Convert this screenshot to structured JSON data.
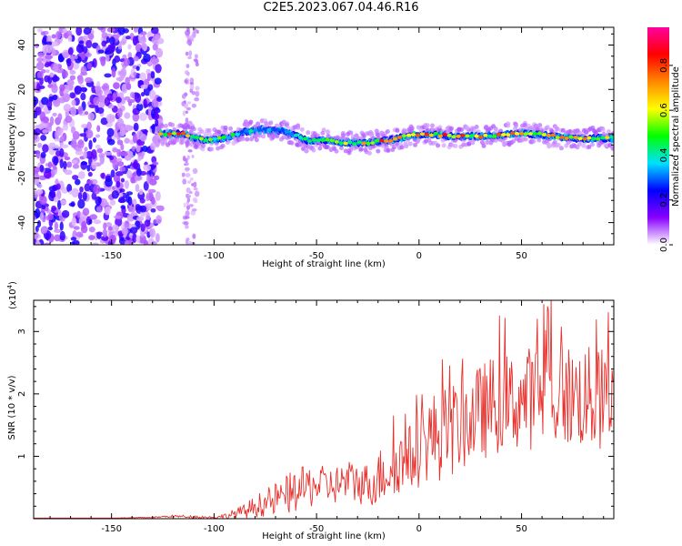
{
  "title": "C2E5.2023.067.04.46.R16",
  "chart_data": [
    {
      "type": "heatmap",
      "name": "spectrogram",
      "xlabel": "Height of straight line (km)",
      "ylabel": "Frequency (Hz)",
      "xlim": [
        -188,
        95
      ],
      "ylim": [
        -50,
        48
      ],
      "xticks": [
        -150,
        -100,
        -50,
        0,
        50
      ],
      "yticks": [
        -40,
        -20,
        0,
        20,
        40
      ],
      "grid": false,
      "colorbar": {
        "label": "Normalized spectral amplitude",
        "range": [
          0,
          1
        ],
        "ticks": [
          "0.0",
          "0.2",
          "0.4",
          "0.6",
          "0.8"
        ],
        "colors": [
          "#ffffff",
          "#8800ff",
          "#0000ff",
          "#00e0ff",
          "#00ff00",
          "#ffff00",
          "#ff8800",
          "#ff0000",
          "#ff00a0"
        ]
      },
      "noise_region_x": [
        -188,
        -126
      ],
      "sparse_noise_band_x": [
        -115,
        -108
      ],
      "signal_trace": {
        "x": [
          -126,
          -115,
          -105,
          -95,
          -85,
          -75,
          -65,
          -55,
          -45,
          -35,
          -25,
          -15,
          -5,
          5,
          15,
          25,
          35,
          45,
          55,
          65,
          75,
          85,
          95
        ],
        "freq_hz": [
          0,
          0,
          -3,
          -2,
          1,
          2,
          1,
          -3,
          -3,
          -4,
          -4,
          -3,
          -1,
          0,
          -1,
          -1,
          -1,
          0,
          0,
          -1,
          -2,
          -2,
          -2
        ],
        "peak_amplitude": [
          0.8,
          0.9,
          0.6,
          0.6,
          0.5,
          0.45,
          0.5,
          0.6,
          0.6,
          0.65,
          0.85,
          0.9,
          0.8,
          0.85,
          0.9,
          0.85,
          0.8,
          0.85,
          0.8,
          0.85,
          0.8,
          0.75,
          0.7
        ]
      }
    },
    {
      "type": "line",
      "name": "snr",
      "xlabel": "Height of straight line (km)",
      "ylabel": "SNR (10 * v/v)",
      "y_multiplier": "(x10",
      "y_multiplier_exp": "4",
      "y_multiplier_close": ")",
      "xlim": [
        -188,
        95
      ],
      "ylim": [
        0,
        3.5
      ],
      "xticks": [
        -150,
        -100,
        -50,
        0,
        50
      ],
      "yticks": [
        1,
        2,
        3
      ],
      "grid": false,
      "line_color": "#e8302c",
      "series": [
        {
          "x": [
            -188,
            -170,
            -150,
            -130,
            -120,
            -110,
            -100,
            -95,
            -90,
            -85,
            -80,
            -75,
            -70,
            -65,
            -60,
            -55,
            -50,
            -45,
            -40,
            -35,
            -30,
            -25,
            -20,
            -15,
            -10,
            -5,
            0,
            5,
            10,
            15,
            20,
            25,
            30,
            35,
            40,
            45,
            50,
            55,
            60,
            65,
            70,
            75,
            80,
            85,
            90,
            95
          ],
          "baseline": [
            0.01,
            0.01,
            0.01,
            0.02,
            0.04,
            0.03,
            0.02,
            0.04,
            0.08,
            0.12,
            0.2,
            0.25,
            0.3,
            0.38,
            0.45,
            0.5,
            0.55,
            0.52,
            0.55,
            0.6,
            0.58,
            0.55,
            0.65,
            0.8,
            0.9,
            0.95,
            1.1,
            1.3,
            1.35,
            1.4,
            1.5,
            1.6,
            1.7,
            1.8,
            1.85,
            1.85,
            1.9,
            1.95,
            2.0,
            1.95,
            2.0,
            1.95,
            1.95,
            1.9,
            1.9,
            1.85
          ],
          "spread": [
            0.0,
            0.0,
            0.0,
            0.01,
            0.02,
            0.02,
            0.02,
            0.04,
            0.08,
            0.12,
            0.18,
            0.22,
            0.28,
            0.32,
            0.35,
            0.35,
            0.35,
            0.3,
            0.32,
            0.35,
            0.35,
            0.35,
            0.45,
            0.5,
            0.5,
            0.55,
            0.6,
            0.7,
            0.75,
            0.75,
            0.75,
            0.75,
            0.78,
            0.8,
            0.8,
            0.8,
            0.8,
            0.85,
            0.85,
            0.85,
            0.85,
            0.85,
            0.85,
            0.85,
            0.85,
            0.8
          ],
          "max": 3.55
        }
      ]
    }
  ]
}
